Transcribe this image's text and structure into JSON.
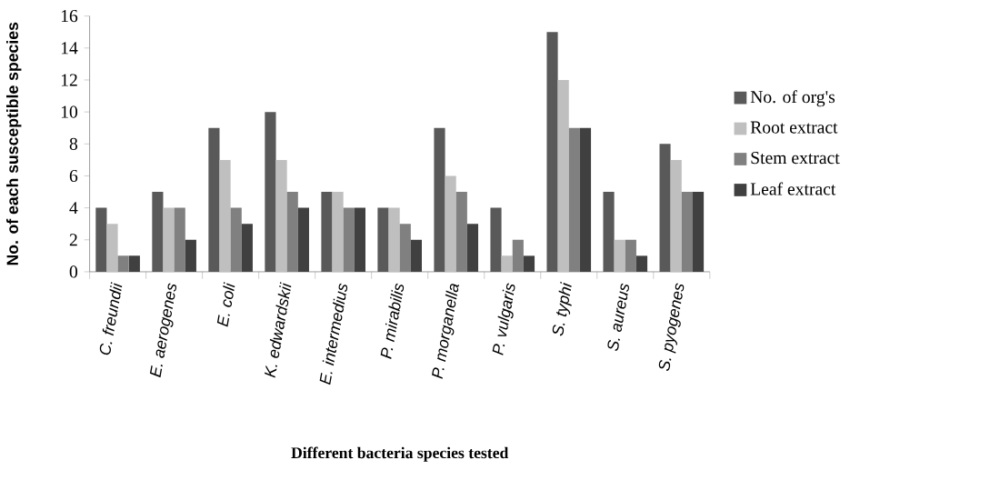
{
  "chart_data": {
    "type": "bar",
    "xlabel": "Different bacteria species tested",
    "ylabel": "No. of each susceptible species",
    "categories": [
      "C. freundii",
      "E. aerogenes",
      "E. coli",
      "K. edwardskii",
      "E. intermedius",
      "P. mirabilis",
      "P. morganella",
      "P. vulgaris",
      "S. typhi",
      "S. aureus",
      "S. pyogenes"
    ],
    "series": [
      {
        "name": "No. of org's",
        "color": "#595959",
        "values": [
          4,
          5,
          9,
          10,
          5,
          4,
          9,
          4,
          15,
          5,
          8
        ]
      },
      {
        "name": "Root extract",
        "color": "#bfbfbf",
        "values": [
          3,
          4,
          7,
          7,
          5,
          4,
          6,
          1,
          12,
          2,
          7
        ]
      },
      {
        "name": "Stem extract",
        "color": "#808080",
        "values": [
          1,
          4,
          4,
          5,
          4,
          3,
          5,
          2,
          9,
          2,
          5
        ]
      },
      {
        "name": "Leaf extract",
        "color": "#404040",
        "values": [
          1,
          2,
          3,
          4,
          4,
          2,
          3,
          1,
          9,
          1,
          5
        ]
      }
    ],
    "ylim": [
      0,
      16
    ],
    "yticks": [
      0,
      2,
      4,
      6,
      8,
      10,
      12,
      14,
      16
    ],
    "grid": false,
    "legend": "right"
  }
}
